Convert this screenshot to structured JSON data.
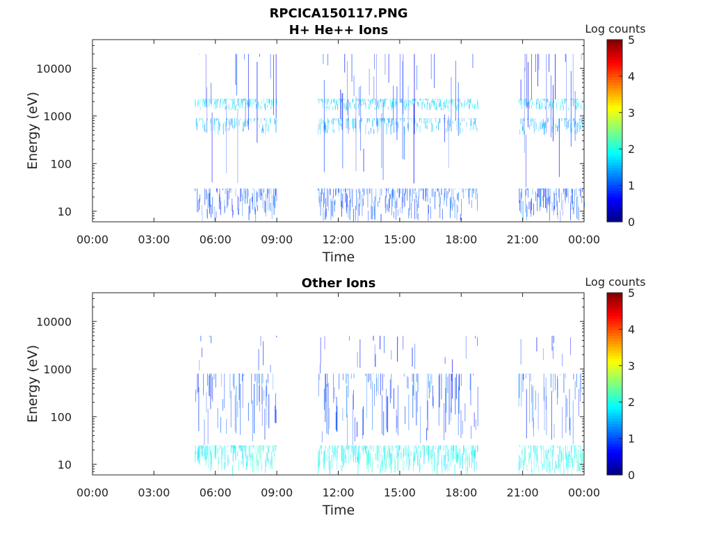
{
  "figure": {
    "title": "RPCICA150117.PNG"
  },
  "chart_data": [
    {
      "type": "heatmap",
      "title": "H+ He++ Ions",
      "xlabel": "Time",
      "ylabel": "Energy (eV)",
      "x_ticks": [
        "00:00",
        "03:00",
        "06:00",
        "09:00",
        "12:00",
        "15:00",
        "18:00",
        "21:00",
        "00:00"
      ],
      "x_range_hours": [
        0,
        24
      ],
      "y_scale": "log",
      "y_ticks": [
        "10",
        "100",
        "1000",
        "10000"
      ],
      "y_range": [
        6,
        40000
      ],
      "colorbar": {
        "label": "Log counts",
        "ticks": [
          "0",
          "1",
          "2",
          "3",
          "4",
          "5"
        ],
        "range": [
          0,
          5
        ],
        "colormap": "jet"
      },
      "data_intervals_hours": [
        [
          5.0,
          9.0
        ],
        [
          11.0,
          18.8
        ],
        [
          20.8,
          24.0
        ]
      ],
      "bands": [
        {
          "energy_range": [
            6,
            30
          ],
          "log_counts": 1.0,
          "density": 0.6
        },
        {
          "energy_range": [
            1300,
            2300
          ],
          "log_counts": 1.7,
          "density": 0.7
        },
        {
          "energy_range": [
            400,
            900
          ],
          "log_counts": 1.5,
          "density": 0.5
        },
        {
          "energy_range": [
            30,
            20000
          ],
          "log_counts": 0.8,
          "density": 0.12
        }
      ]
    },
    {
      "type": "heatmap",
      "title": "Other Ions",
      "xlabel": "Time",
      "ylabel": "Energy (eV)",
      "x_ticks": [
        "00:00",
        "03:00",
        "06:00",
        "09:00",
        "12:00",
        "15:00",
        "18:00",
        "21:00",
        "00:00"
      ],
      "x_range_hours": [
        0,
        24
      ],
      "y_scale": "log",
      "y_ticks": [
        "10",
        "100",
        "1000",
        "10000"
      ],
      "y_range": [
        6,
        40000
      ],
      "colorbar": {
        "label": "Log counts",
        "ticks": [
          "0",
          "1",
          "2",
          "3",
          "4",
          "5"
        ],
        "range": [
          0,
          5
        ],
        "colormap": "jet"
      },
      "data_intervals_hours": [
        [
          5.0,
          9.0
        ],
        [
          11.0,
          18.8
        ],
        [
          20.8,
          24.0
        ]
      ],
      "bands": [
        {
          "energy_range": [
            6,
            25
          ],
          "log_counts": 1.9,
          "density": 0.75
        },
        {
          "energy_range": [
            25,
            800
          ],
          "log_counts": 1.0,
          "density": 0.35
        },
        {
          "energy_range": [
            800,
            5000
          ],
          "log_counts": 0.8,
          "density": 0.06
        }
      ]
    }
  ]
}
